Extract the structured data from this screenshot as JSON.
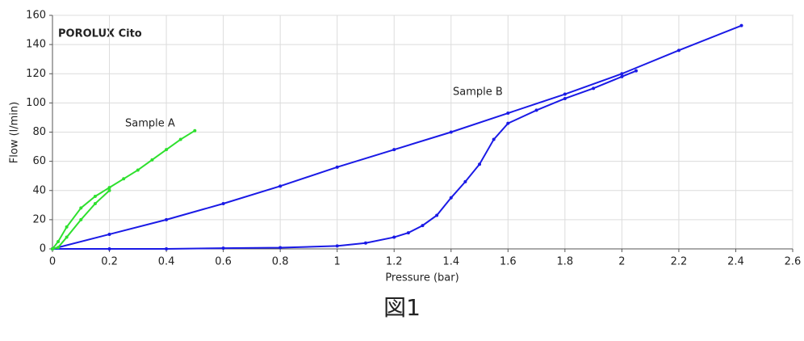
{
  "chart_data": {
    "type": "line",
    "title": "POROLUX Cito",
    "x_label": "Pressure (bar)",
    "y_label": "Flow (l/min)",
    "caption": "図1",
    "annotations": [
      "Sample A",
      "Sample B"
    ],
    "xlim": [
      0,
      2.6
    ],
    "ylim": [
      0,
      160
    ],
    "xticks": [
      0,
      0.2,
      0.4,
      0.6,
      0.8,
      1,
      1.2,
      1.4,
      1.6,
      1.8,
      2,
      2.2,
      2.4,
      2.6
    ],
    "yticks": [
      0,
      20,
      40,
      60,
      80,
      100,
      120,
      140,
      160
    ],
    "grid": true,
    "series": [
      {
        "color": "#1a1ae6",
        "x": [
          0,
          0.2,
          0.4,
          0.6,
          0.8,
          1.0,
          1.2,
          1.4,
          1.6,
          1.8,
          2.0,
          2.2,
          2.42
        ],
        "values": [
          0,
          10,
          20,
          31,
          43,
          56,
          68,
          80,
          93,
          106,
          120,
          136,
          153
        ]
      },
      {
        "color": "#1a1ae6",
        "x": [
          0,
          0.2,
          0.4,
          0.6,
          0.8,
          1.0,
          1.1,
          1.2,
          1.25,
          1.3,
          1.35,
          1.4,
          1.45,
          1.5,
          1.55,
          1.6,
          1.7,
          1.8,
          1.9,
          2.0,
          2.05
        ],
        "values": [
          0,
          0,
          0,
          0.5,
          0.8,
          2,
          4,
          8,
          11,
          16,
          23,
          35,
          46,
          58,
          75,
          86,
          95,
          103,
          110,
          118,
          122
        ]
      },
      {
        "color": "#2ee02e",
        "x": [
          0,
          0.02,
          0.05,
          0.1,
          0.15,
          0.2,
          0.25,
          0.3,
          0.35,
          0.4,
          0.45,
          0.5
        ],
        "values": [
          0,
          5,
          15,
          28,
          36,
          42,
          48,
          54,
          61,
          68,
          75,
          81
        ]
      },
      {
        "color": "#2ee02e",
        "x": [
          0,
          0.02,
          0.05,
          0.1,
          0.15,
          0.2
        ],
        "values": [
          0,
          1,
          8,
          20,
          31,
          40
        ]
      }
    ]
  }
}
